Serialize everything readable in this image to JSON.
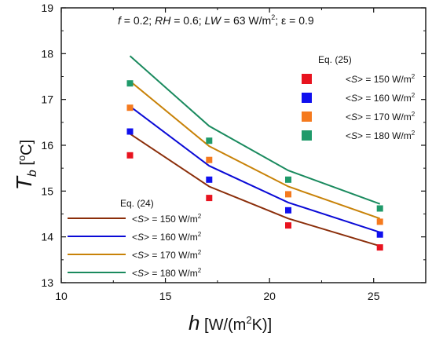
{
  "chart_data": {
    "type": "line",
    "title": "",
    "annotation": {
      "f_label": "f",
      "f_value": " = 0.2;   ",
      "rh_label": "RH",
      "rh_value": " = 0.6;   ",
      "lw_label": "LW",
      "lw_value": " = 63 W/m",
      "lw_sup": "2",
      "eps_value": ";   ε = 0.9"
    },
    "xlabel": {
      "symbol": "h",
      "pre": " [W/(m",
      "sup": "2",
      "post": "K)]"
    },
    "ylabel": {
      "symbol": "T",
      "sub": "b",
      "pre": " [",
      "sup": "o",
      "post": "C]"
    },
    "xlim": [
      10,
      27.5
    ],
    "ylim": [
      13,
      19
    ],
    "xticks": [
      10,
      15,
      20,
      25
    ],
    "yticks": [
      13,
      14,
      15,
      16,
      17,
      18,
      19
    ],
    "x": [
      13.3,
      17.1,
      20.9,
      25.3
    ],
    "legend_markers_title": "Eq. (25)",
    "legend_lines_title": "Eq. (24)",
    "series_lines": [
      {
        "name": "<S> = 150 W/m2",
        "label_pre": "<",
        "label_it": "S",
        "label_post": "> = 150 W/m",
        "label_sup": "2",
        "color": "#8b2e0a",
        "values": [
          16.25,
          15.1,
          14.4,
          13.8
        ]
      },
      {
        "name": "<S> = 160 W/m2",
        "label_pre": "<",
        "label_it": "S",
        "label_post": "> = 160 W/m",
        "label_sup": "2",
        "color": "#0a0ad6",
        "values": [
          16.85,
          15.55,
          14.75,
          14.1
        ]
      },
      {
        "name": "<S> = 170 W/m2",
        "label_pre": "<",
        "label_it": "S",
        "label_post": "> = 170 W/m",
        "label_sup": "2",
        "color": "#c88208",
        "values": [
          17.4,
          15.98,
          15.1,
          14.4
        ]
      },
      {
        "name": "<S> = 180 W/m2",
        "label_pre": "<",
        "label_it": "S",
        "label_post": "> = 180 W/m",
        "label_sup": "2",
        "color": "#1a8a5e",
        "values": [
          17.95,
          16.42,
          15.45,
          14.72
        ]
      }
    ],
    "series_markers": [
      {
        "name": "<S> = 150 W/m2",
        "label_pre": "<",
        "label_it": "S",
        "label_post": "> = 150 W/m",
        "label_sup": "2",
        "color": "#e8131f",
        "values": [
          15.78,
          14.85,
          14.25,
          13.77
        ]
      },
      {
        "name": "<S> = 160 W/m2",
        "label_pre": "<",
        "label_it": "S",
        "label_post": "> = 160 W/m",
        "label_sup": "2",
        "color": "#1010ee",
        "values": [
          16.3,
          15.25,
          14.58,
          14.05
        ]
      },
      {
        "name": "<S> = 170 W/m2",
        "label_pre": "<",
        "label_it": "S",
        "label_post": "> = 170 W/m",
        "label_sup": "2",
        "color": "#f57a1e",
        "values": [
          16.82,
          15.68,
          14.93,
          14.33
        ]
      },
      {
        "name": "<S> = 180 W/m2",
        "label_pre": "<",
        "label_it": "S",
        "label_post": "> = 180 W/m",
        "label_sup": "2",
        "color": "#1f9a6a",
        "values": [
          17.35,
          16.1,
          15.25,
          14.62
        ]
      }
    ]
  }
}
